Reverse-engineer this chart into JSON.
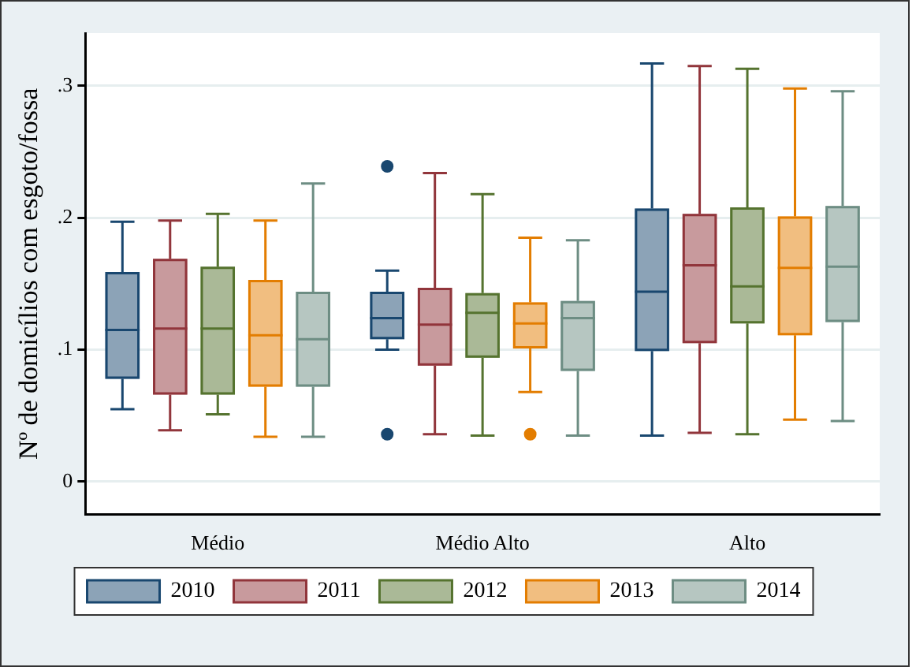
{
  "chart_data": {
    "type": "box",
    "ylabel": "Nº de domicílios com esgoto/fossa",
    "categories": [
      "Médio",
      "Médio Alto",
      "Alto"
    ],
    "ylim": [
      -0.025,
      0.34
    ],
    "yticks": [
      0,
      {
        "value": 0.1,
        "label": ".1"
      },
      {
        "value": 0.2,
        "label": ".2"
      },
      {
        "value": 0.3,
        "label": ".3"
      }
    ],
    "grid": "y",
    "legend": "bottom",
    "series": [
      {
        "name": "2010",
        "color": "#8ca3b7",
        "boxes": [
          {
            "low": 0.055,
            "q1": 0.078,
            "median": 0.115,
            "q3": 0.159,
            "high": 0.197
          },
          {
            "low": 0.1,
            "q1": 0.108,
            "median": 0.124,
            "q3": 0.144,
            "high": 0.16,
            "outliers": [
              0.239,
              0.036
            ]
          },
          {
            "low": 0.035,
            "q1": 0.099,
            "median": 0.144,
            "q3": 0.207,
            "high": 0.317
          }
        ]
      },
      {
        "name": "2011",
        "color": "#c89a9d",
        "boxes": [
          {
            "low": 0.039,
            "q1": 0.066,
            "median": 0.116,
            "q3": 0.169,
            "high": 0.198
          },
          {
            "low": 0.036,
            "q1": 0.088,
            "median": 0.119,
            "q3": 0.147,
            "high": 0.234
          },
          {
            "low": 0.037,
            "q1": 0.105,
            "median": 0.164,
            "q3": 0.203,
            "high": 0.315
          }
        ]
      },
      {
        "name": "2012",
        "color": "#aab997",
        "boxes": [
          {
            "low": 0.051,
            "q1": 0.066,
            "median": 0.116,
            "q3": 0.163,
            "high": 0.203
          },
          {
            "low": 0.035,
            "q1": 0.094,
            "median": 0.128,
            "q3": 0.143,
            "high": 0.218
          },
          {
            "low": 0.036,
            "q1": 0.12,
            "median": 0.148,
            "q3": 0.208,
            "high": 0.313
          }
        ]
      },
      {
        "name": "2013",
        "color": "#f1be80",
        "boxes": [
          {
            "low": 0.034,
            "q1": 0.072,
            "median": 0.111,
            "q3": 0.153,
            "high": 0.198
          },
          {
            "low": 0.068,
            "q1": 0.101,
            "median": 0.12,
            "q3": 0.136,
            "high": 0.185,
            "outliers": [
              0.036
            ]
          },
          {
            "low": 0.047,
            "q1": 0.111,
            "median": 0.162,
            "q3": 0.201,
            "high": 0.298
          }
        ]
      },
      {
        "name": "2014",
        "color": "#b6c6c1",
        "boxes": [
          {
            "low": 0.034,
            "q1": 0.072,
            "median": 0.108,
            "q3": 0.144,
            "high": 0.226
          },
          {
            "low": 0.035,
            "q1": 0.084,
            "median": 0.124,
            "q3": 0.137,
            "high": 0.183
          },
          {
            "low": 0.046,
            "q1": 0.121,
            "median": 0.163,
            "q3": 0.209,
            "high": 0.296
          }
        ]
      }
    ]
  }
}
